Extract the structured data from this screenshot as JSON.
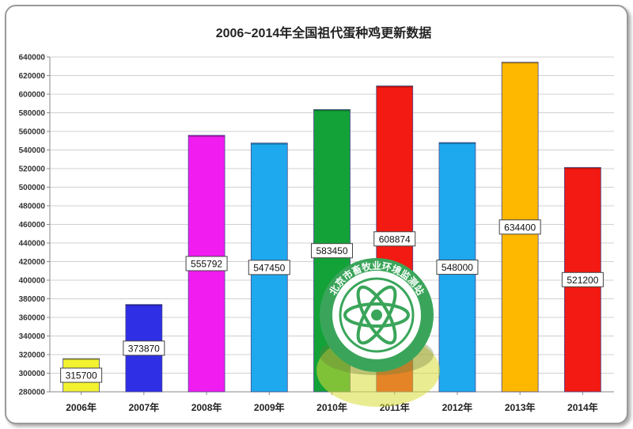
{
  "chart_data": {
    "type": "bar",
    "title": "2006~2014年全国祖代蛋种鸡更新数据",
    "xlabel": "",
    "ylabel": "",
    "categories": [
      "2006年",
      "2007年",
      "2008年",
      "2009年",
      "2010年",
      "2011年",
      "2012年",
      "2013年",
      "2014年"
    ],
    "values": [
      315700,
      373870,
      555792,
      547450,
      583450,
      608874,
      548000,
      634400,
      521200
    ],
    "data_labels": [
      "315700",
      "373870",
      "555792",
      "547450",
      "583450",
      "608874",
      "548000",
      "634400",
      "521200"
    ],
    "bar_colors": [
      "#f2f230",
      "#2f2fe6",
      "#f01cf0",
      "#1ea8ee",
      "#12a238",
      "#f21a12",
      "#1ea8ee",
      "#ffb800",
      "#f21a12"
    ],
    "ylim": [
      280000,
      640000
    ],
    "yticks": [
      "280000",
      "300000",
      "320000",
      "340000",
      "360000",
      "380000",
      "400000",
      "420000",
      "440000",
      "460000",
      "480000",
      "500000",
      "520000",
      "540000",
      "560000",
      "580000",
      "600000",
      "620000",
      "640000"
    ],
    "grid": true,
    "legend": "none"
  },
  "colors": {
    "grid": "#d0d0d0",
    "axis": "#888888",
    "label_border": "#444444"
  },
  "watermark": {
    "text": "北京市畜牧业环境监测站",
    "icon": "atom-seal-icon"
  }
}
